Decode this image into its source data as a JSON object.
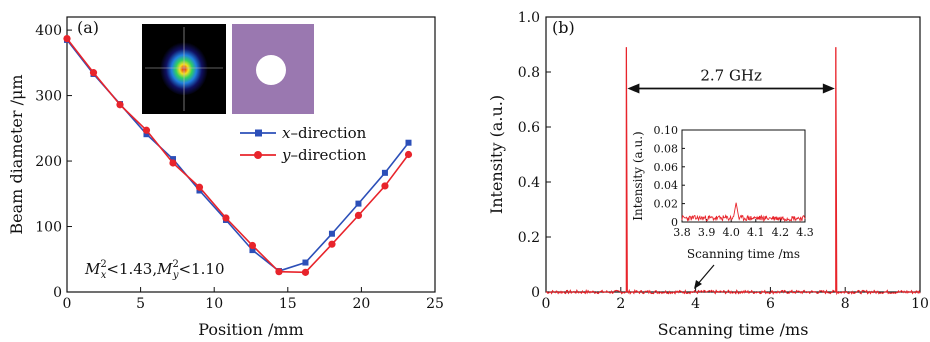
{
  "chart_data": [
    {
      "panel_label": "(a)",
      "type": "line",
      "xlabel": "Position /mm",
      "ylabel": "Beam diameter /μm",
      "xlim": [
        0,
        25
      ],
      "ylim": [
        0,
        420
      ],
      "xticks": [
        0,
        5,
        10,
        15,
        20,
        25
      ],
      "yticks": [
        0,
        100,
        200,
        300,
        400
      ],
      "legend_position": "right",
      "annotation": {
        "mx": "M",
        "mx_sup": "2",
        "mx_sub": "x",
        "mx_val": "<1.43,",
        "my": "M",
        "my_sup": "2",
        "my_sub": "y",
        "my_val": "<1.10"
      },
      "series": [
        {
          "name": "x–direction",
          "color": "#2c4fb8",
          "marker": "square",
          "x": [
            0,
            1.8,
            3.6,
            5.4,
            7.2,
            9.0,
            10.8,
            12.6,
            14.4,
            16.2,
            18.0,
            19.8,
            21.6,
            23.2
          ],
          "y": [
            385,
            333,
            287,
            241,
            203,
            155,
            110,
            64,
            32,
            45,
            89,
            135,
            182,
            228
          ]
        },
        {
          "name": "y–direction",
          "color": "#e8242b",
          "marker": "circle",
          "x": [
            0,
            1.8,
            3.6,
            5.4,
            7.2,
            9.0,
            10.8,
            12.6,
            14.4,
            16.2,
            18.0,
            19.8,
            21.6,
            23.2
          ],
          "y": [
            387,
            335,
            286,
            247,
            197,
            160,
            113,
            71,
            31,
            30,
            73,
            117,
            162,
            210
          ]
        }
      ]
    },
    {
      "panel_label": "(b)",
      "type": "line",
      "xlabel": "Scanning time /ms",
      "ylabel": "Intensity (a.u.)",
      "xlim": [
        0,
        10
      ],
      "ylim": [
        0,
        1.0
      ],
      "xticks": [
        "0",
        "2",
        "4",
        "6",
        "8",
        "10"
      ],
      "yticks": [
        "0",
        "0.2",
        "0.4",
        "0.6",
        "0.8",
        "1.0"
      ],
      "annotation": "2.7 GHz",
      "series": [
        {
          "color": "#e8242b",
          "peaks": [
            {
              "x": 2.15,
              "y": 0.89
            },
            {
              "x": 7.75,
              "y": 0.89
            }
          ],
          "baseline": 0.0
        }
      ],
      "inset": {
        "xlabel": "Scanning time /ms",
        "ylabel": "Intensity (a.u.)",
        "xlim": [
          3.8,
          4.3
        ],
        "ylim": [
          0,
          0.1
        ],
        "xticks": [
          "3.8",
          "3.9",
          "4.0",
          "4.1",
          "4.2",
          "4.3"
        ],
        "yticks": [
          "0",
          "0.02",
          "0.04",
          "0.06",
          "0.08",
          "0.10"
        ],
        "series": [
          {
            "color": "#e8242b",
            "baseline": 0.003,
            "peak_x": 4.02,
            "peak_y": 0.021
          }
        ]
      }
    }
  ]
}
